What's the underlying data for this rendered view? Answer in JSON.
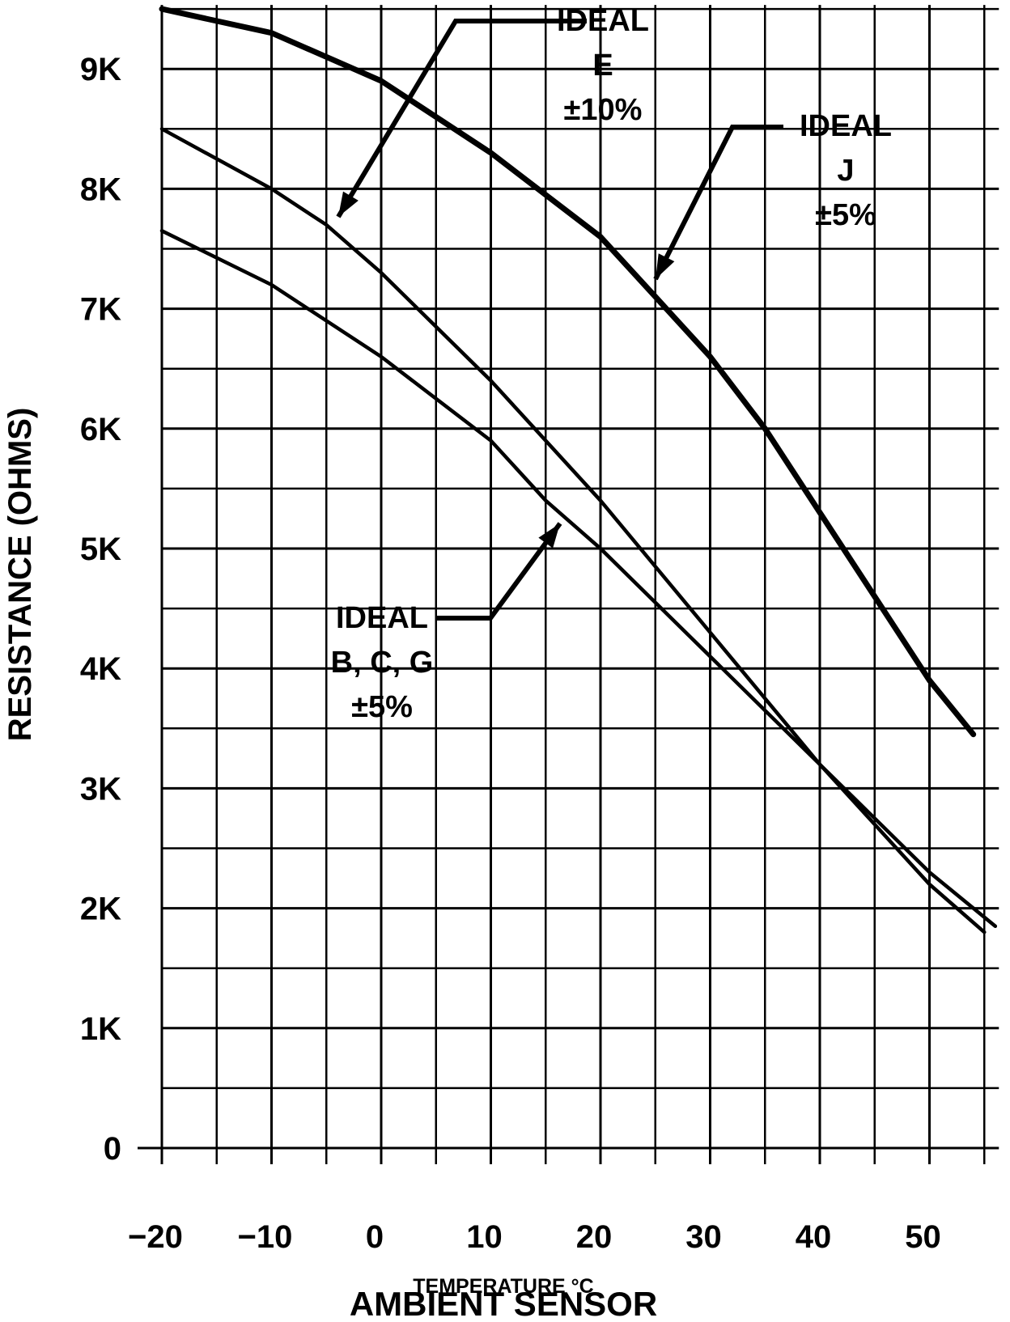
{
  "chart_data": {
    "type": "line",
    "title": "AMBIENT SENSOR",
    "xlabel": "TEMPERATURE °C",
    "ylabel": "RESISTANCE (OHMS)",
    "xlim": [
      -20,
      55
    ],
    "ylim": [
      0,
      9500
    ],
    "grid": true,
    "x_ticks": [
      -20,
      -10,
      0,
      10,
      20,
      30,
      40,
      50
    ],
    "x_tick_labels": [
      "−20",
      "−10",
      "0",
      "10",
      "20",
      "30",
      "40",
      "50"
    ],
    "y_ticks": [
      0,
      1000,
      2000,
      3000,
      4000,
      5000,
      6000,
      7000,
      8000,
      9000
    ],
    "y_tick_labels": [
      "0",
      "1K",
      "2K",
      "3K",
      "4K",
      "5K",
      "6K",
      "7K",
      "8K",
      "9K"
    ],
    "series": [
      {
        "name": "IDEAL J ±5%",
        "x": [
          -20,
          -10,
          0,
          10,
          20,
          25,
          30,
          35,
          40,
          45,
          50,
          54
        ],
        "y": [
          9500,
          9300,
          8900,
          8300,
          7600,
          7100,
          6600,
          6000,
          5300,
          4600,
          3900,
          3450
        ]
      },
      {
        "name": "IDEAL E ±10%",
        "x": [
          -20,
          -10,
          -5,
          0,
          10,
          20,
          30,
          40,
          50,
          55
        ],
        "y": [
          8500,
          8000,
          7700,
          7300,
          6400,
          5400,
          4300,
          3200,
          2200,
          1800
        ]
      },
      {
        "name": "IDEAL B, C, G ±5%",
        "x": [
          -20,
          -10,
          0,
          10,
          15,
          20,
          30,
          40,
          50,
          56
        ],
        "y": [
          7650,
          7200,
          6600,
          5900,
          5400,
          5000,
          4100,
          3200,
          2300,
          1850
        ]
      }
    ],
    "annotations": [
      {
        "lines": [
          "IDEAL",
          "E",
          "±10%"
        ],
        "series": "IDEAL E ±10%"
      },
      {
        "lines": [
          "IDEAL",
          "J",
          "±5%"
        ],
        "series": "IDEAL J ±5%"
      },
      {
        "lines": [
          "IDEAL",
          "B, C, G",
          "±5%"
        ],
        "series": "IDEAL B, C, G ±5%"
      }
    ]
  }
}
